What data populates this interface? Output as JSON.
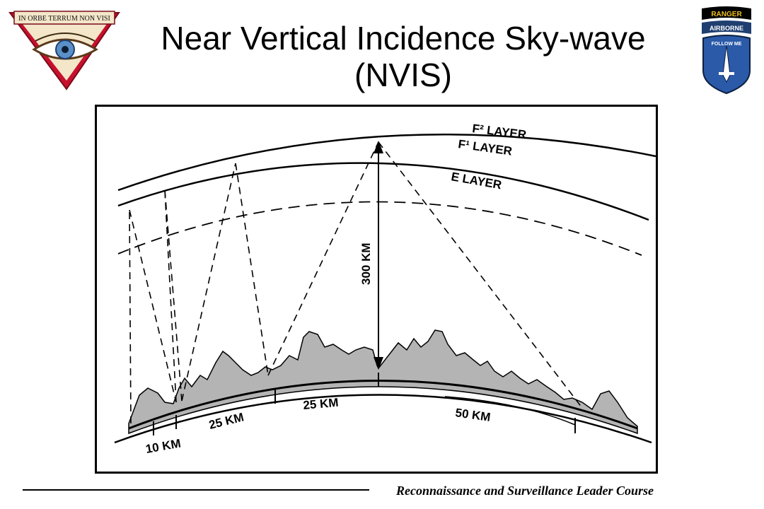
{
  "slide": {
    "title_line1": "Near Vertical Incidence Sky-wave",
    "title_line2": "(NVIS)",
    "footer": "Reconnaissance and Surveillance Leader Course"
  },
  "logos": {
    "left": {
      "icon": "seal-eye-icon",
      "motto": "IN ORBE TERRUM NON VISI"
    },
    "right": {
      "icon": "ranger-airborne-patch-icon",
      "tab1": "RANGER",
      "tab2": "AIRBORNE",
      "motto": "FOLLOW ME"
    }
  },
  "diagram": {
    "layers": {
      "f2": "F² LAYER",
      "f1": "F¹ LAYER",
      "e": "E LAYER"
    },
    "height_label": "300 KM",
    "distances": {
      "d10": "10 KM",
      "d25a": "25 KM",
      "d25b": "25 KM",
      "d50": "50 KM"
    }
  },
  "colors": {
    "terrain_fill": "#b4b4b4",
    "ink": "#000000",
    "ranger_tab": "#000000",
    "ranger_text": "#f0c020",
    "patch_blue": "#2a5aa8",
    "seal_red": "#c8102e"
  }
}
